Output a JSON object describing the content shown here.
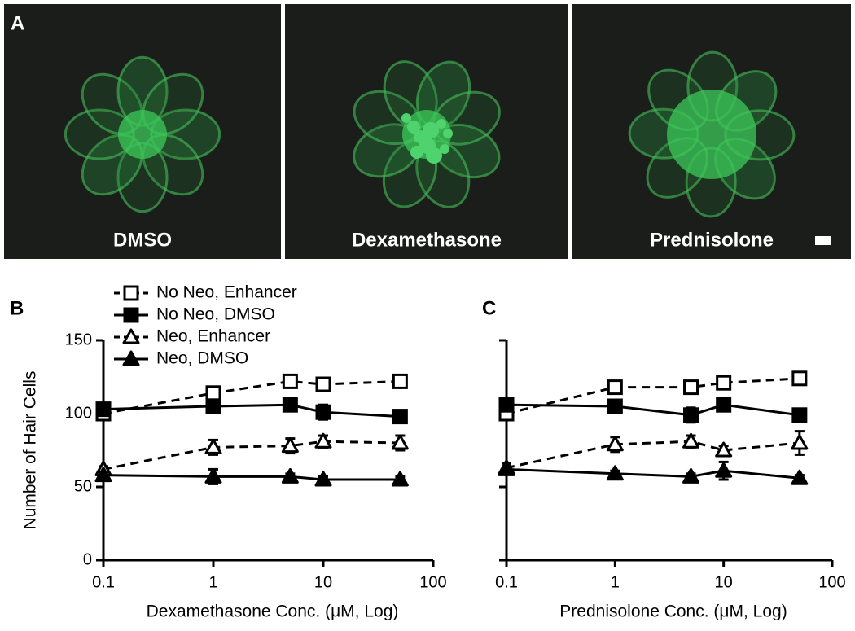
{
  "panels": {
    "label": "A",
    "images": [
      "DMSO",
      "Dexamethasone",
      "Prednisolone"
    ]
  },
  "chart_data": [
    {
      "type": "line",
      "panel": "B",
      "x_label": "Dexamethasone Conc. (μM, Log)",
      "y_label": "Number of Hair Cells",
      "x": [
        0.1,
        1,
        5,
        10,
        50
      ],
      "x_log": true,
      "xlim": [
        0.1,
        100
      ],
      "xticks": [
        0.1,
        1,
        10,
        100
      ],
      "ylim": [
        0,
        150
      ],
      "yticks": [
        0,
        50,
        100,
        150
      ],
      "legend": "upper left",
      "series": [
        {
          "name": "No Neo, Enhancer",
          "color": "#000000",
          "marker": "square",
          "filled": false,
          "dashed": true,
          "values": [
            100,
            114,
            122,
            120,
            122
          ],
          "errors": [
            3,
            3,
            3,
            3,
            3
          ]
        },
        {
          "name": "No Neo, DMSO",
          "color": "#000000",
          "marker": "square",
          "filled": true,
          "dashed": false,
          "values": [
            103,
            105,
            106,
            101,
            98
          ],
          "errors": [
            3,
            3,
            2,
            5,
            2
          ]
        },
        {
          "name": "Neo, Enhancer",
          "color": "#000000",
          "marker": "triangle",
          "filled": false,
          "dashed": true,
          "values": [
            62,
            77,
            78,
            81,
            80
          ],
          "errors": [
            2,
            5,
            5,
            4,
            5
          ]
        },
        {
          "name": "Neo, DMSO",
          "color": "#000000",
          "marker": "triangle",
          "filled": true,
          "dashed": false,
          "values": [
            58,
            57,
            57,
            55,
            55
          ],
          "errors": [
            2,
            5,
            2,
            2,
            2
          ]
        }
      ]
    },
    {
      "type": "line",
      "panel": "C",
      "x_label": "Prednisolone Conc. (μM, Log)",
      "x": [
        0.1,
        1,
        5,
        10,
        50
      ],
      "x_log": true,
      "xlim": [
        0.1,
        100
      ],
      "xticks": [
        0.1,
        1,
        10,
        100
      ],
      "ylim": [
        0,
        150
      ],
      "yticks": [
        0,
        50,
        100,
        150
      ],
      "y_tick_labels": false,
      "series": [
        {
          "color": "#000000",
          "marker": "square",
          "filled": false,
          "dashed": true,
          "values": [
            100,
            118,
            118,
            121,
            124
          ],
          "errors": [
            3,
            3,
            3,
            3,
            4
          ]
        },
        {
          "color": "#000000",
          "marker": "square",
          "filled": true,
          "dashed": false,
          "values": [
            106,
            105,
            99,
            106,
            99
          ],
          "errors": [
            4,
            4,
            5,
            4,
            3
          ]
        },
        {
          "color": "#000000",
          "marker": "triangle",
          "filled": false,
          "dashed": true,
          "values": [
            63,
            79,
            81,
            75,
            80
          ],
          "errors": [
            3,
            5,
            4,
            3,
            8
          ]
        },
        {
          "color": "#000000",
          "marker": "triangle",
          "filled": true,
          "dashed": false,
          "values": [
            62,
            59,
            57,
            61,
            56
          ],
          "errors": [
            2,
            2,
            2,
            6,
            2
          ]
        }
      ]
    }
  ]
}
